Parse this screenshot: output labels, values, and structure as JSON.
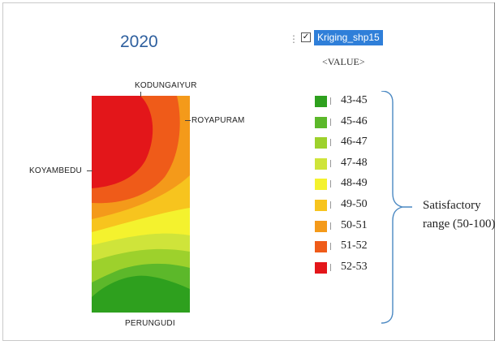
{
  "map": {
    "year": "2020",
    "places": {
      "north": "KODUNGAIYUR",
      "east": "ROYAPURAM",
      "west": "KOYAMBEDU",
      "south": "PERUNGUDI"
    }
  },
  "legend": {
    "layer_name": "Kriging_shp15",
    "checked": true,
    "field": "<VALUE>",
    "items": [
      {
        "label": "43-45",
        "color": "#2ea01e"
      },
      {
        "label": "45-46",
        "color": "#5cb82a"
      },
      {
        "label": "46-47",
        "color": "#9dd12c"
      },
      {
        "label": "47-48",
        "color": "#cfe43a"
      },
      {
        "label": "48-49",
        "color": "#f4f22e"
      },
      {
        "label": "49-50",
        "color": "#f7c41e"
      },
      {
        "label": "50-51",
        "color": "#f49a1a"
      },
      {
        "label": "51-52",
        "color": "#ef5b19"
      },
      {
        "label": "52-53",
        "color": "#e3161a"
      }
    ]
  },
  "annotation": {
    "line1": "Satisfactory",
    "line2": "range (50-100)"
  }
}
